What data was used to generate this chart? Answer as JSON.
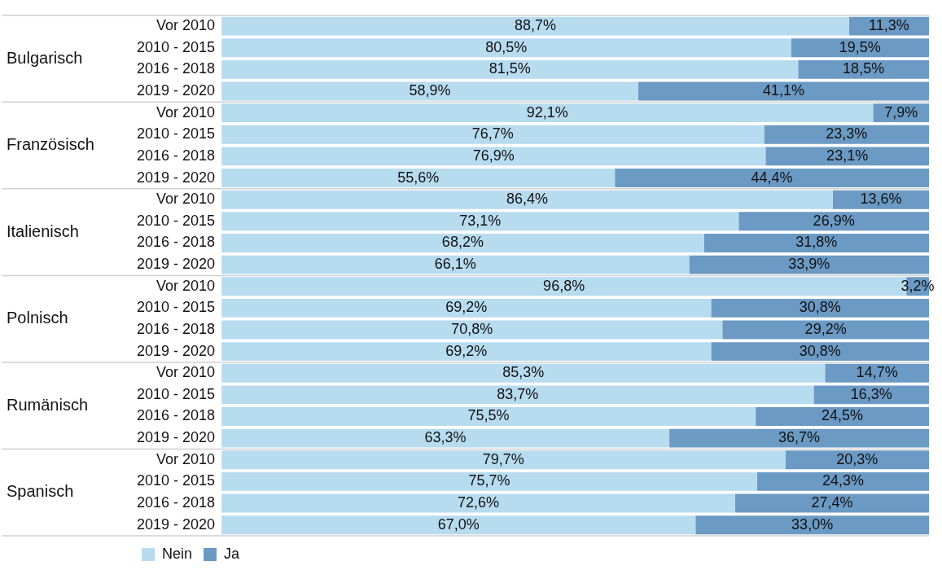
{
  "chart_data": {
    "type": "bar",
    "orientation": "horizontal",
    "stacked": true,
    "legend": "bottom left",
    "tick_labels": "y",
    "xlim": [
      0,
      100
    ],
    "categories": [
      "Vor 2010",
      "2010 - 2015",
      "2016 - 2018",
      "2019 - 2020",
      "Vor 2010",
      "2010 - 2015",
      "2016 - 2018",
      "2019 - 2020",
      "Vor 2010",
      "2010 - 2015",
      "2016 - 2018",
      "2019 - 2020",
      "Vor 2010",
      "2010 - 2015",
      "2016 - 2018",
      "2019 - 2020",
      "Vor 2010",
      "2010 - 2015",
      "2016 - 2018",
      "2019 - 2020",
      "Vor 2010",
      "2010 - 2015",
      "2016 - 2018",
      "2019 - 2020"
    ],
    "annotations": [
      "Bulgarisch",
      "Französisch",
      "Italienisch",
      "Polnisch",
      "Rumänisch",
      "Spanisch"
    ],
    "series": [
      {
        "name": "Nein",
        "color": "#b7dbef",
        "values": [
          88.7,
          80.5,
          81.5,
          58.9,
          92.1,
          76.7,
          76.9,
          55.6,
          86.4,
          73.1,
          68.2,
          66.1,
          96.8,
          69.2,
          70.8,
          69.2,
          85.3,
          83.7,
          75.5,
          63.3,
          79.7,
          75.7,
          72.6,
          67.0
        ],
        "value_labels": [
          "88,7%",
          "80,5%",
          "81,5%",
          "58,9%",
          "92,1%",
          "76,7%",
          "76,9%",
          "55,6%",
          "86,4%",
          "73,1%",
          "68,2%",
          "66,1%",
          "96,8%",
          "69,2%",
          "70,8%",
          "69,2%",
          "85,3%",
          "83,7%",
          "75,5%",
          "63,3%",
          "79,7%",
          "75,7%",
          "72,6%",
          "67,0%"
        ]
      },
      {
        "name": "Ja",
        "color": "#6b9ac4",
        "values": [
          11.3,
          19.5,
          18.5,
          41.1,
          7.9,
          23.3,
          23.1,
          44.4,
          13.6,
          26.9,
          31.8,
          33.9,
          3.2,
          30.8,
          29.2,
          30.8,
          14.7,
          16.3,
          24.5,
          36.7,
          20.3,
          24.3,
          27.4,
          33.0
        ],
        "value_labels": [
          "11,3%",
          "19,5%",
          "18,5%",
          "41,1%",
          "7,9%",
          "23,3%",
          "23,1%",
          "44,4%",
          "13,6%",
          "26,9%",
          "31,8%",
          "33,9%",
          "3,2%",
          "30,8%",
          "29,2%",
          "30,8%",
          "14,7%",
          "16,3%",
          "24,5%",
          "36,7%",
          "20,3%",
          "24,3%",
          "27,4%",
          "33,0%"
        ]
      }
    ]
  }
}
